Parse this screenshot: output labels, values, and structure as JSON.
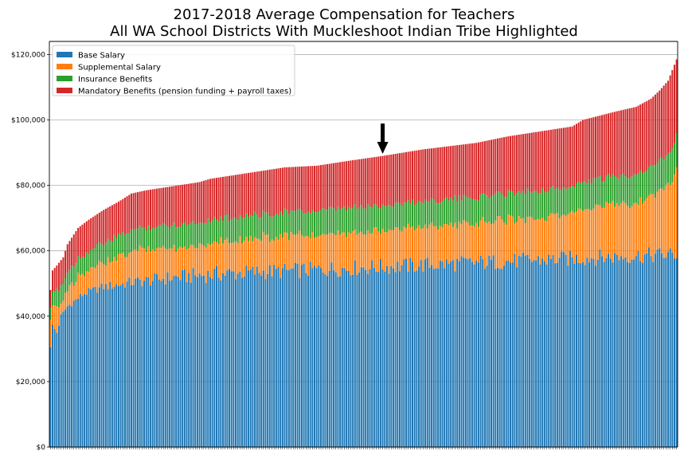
{
  "chart_data": {
    "type": "bar",
    "stacked": true,
    "title": "2017-2018 Average Compensation for Teachers",
    "subtitle": "All WA School Districts With Muckleshoot Indian Tribe Highlighted",
    "xlabel": "",
    "ylabel": "",
    "ylim": [
      0,
      124000
    ],
    "yticks": [
      0,
      20000,
      40000,
      60000,
      80000,
      100000,
      120000
    ],
    "ytick_labels": [
      "$0",
      "$20,000",
      "$40,000",
      "$60,000",
      "$80,000",
      "$100,000",
      "$120,000"
    ],
    "grid": "horizontal",
    "legend_position": "top-left",
    "n_districts": 295,
    "highlight_index": 156,
    "highlight_marker": "down-arrow",
    "total_anchors": [
      [
        0,
        48000
      ],
      [
        1,
        54000
      ],
      [
        3,
        55500
      ],
      [
        6,
        58000
      ],
      [
        8,
        62000
      ],
      [
        10,
        64000
      ],
      [
        13,
        67000
      ],
      [
        18,
        69500
      ],
      [
        25,
        72500
      ],
      [
        32,
        75000
      ],
      [
        38,
        77500
      ],
      [
        45,
        78500
      ],
      [
        60,
        80000
      ],
      [
        70,
        81000
      ],
      [
        75,
        82000
      ],
      [
        100,
        84500
      ],
      [
        110,
        85500
      ],
      [
        125,
        86000
      ],
      [
        140,
        87500
      ],
      [
        156,
        89000
      ],
      [
        175,
        91000
      ],
      [
        200,
        93000
      ],
      [
        215,
        95000
      ],
      [
        235,
        97000
      ],
      [
        245,
        98000
      ],
      [
        250,
        100000
      ],
      [
        265,
        102500
      ],
      [
        275,
        104000
      ],
      [
        282,
        106500
      ],
      [
        286,
        109000
      ],
      [
        290,
        112000
      ],
      [
        294,
        118500
      ]
    ],
    "base_anchors": [
      [
        0,
        31000
      ],
      [
        1,
        37000
      ],
      [
        3,
        35000
      ],
      [
        5,
        40000
      ],
      [
        8,
        43000
      ],
      [
        12,
        45000
      ],
      [
        16,
        47000
      ],
      [
        25,
        49000
      ],
      [
        40,
        50500
      ],
      [
        60,
        52000
      ],
      [
        80,
        53000
      ],
      [
        294,
        59000
      ]
    ],
    "series": [
      {
        "name": "Base Salary",
        "color": "#1f77b4"
      },
      {
        "name": "Supplemental Salary",
        "color": "#ff7f0e"
      },
      {
        "name": "Insurance Benefits",
        "color": "#2ca02c"
      },
      {
        "name": "Mandatory Benefits (pension funding + payroll taxes)",
        "color": "#d62728"
      }
    ]
  }
}
